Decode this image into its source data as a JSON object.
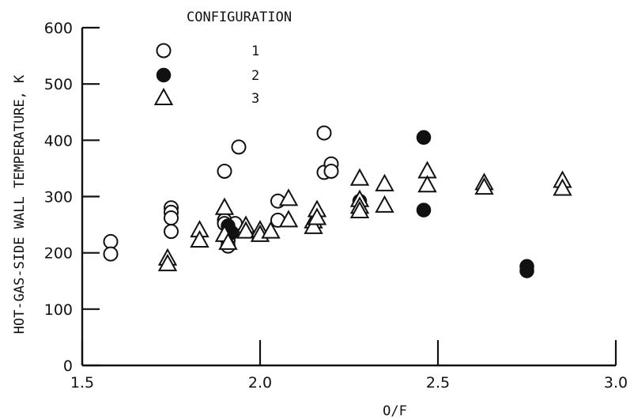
{
  "chart_data": {
    "type": "scatter",
    "title": "",
    "xlabel": "O/F",
    "ylabel": "HOT-GAS-SIDE WALL TEMPERATURE, K",
    "xlim": [
      1.5,
      3.0
    ],
    "ylim": [
      0,
      600
    ],
    "x_ticks": [
      "1.5",
      "2.0",
      "2.5",
      "3.0"
    ],
    "y_ticks": [
      "0",
      "100",
      "200",
      "300",
      "400",
      "500",
      "600"
    ],
    "grid": false,
    "legend": {
      "title": "CONFIGURATION",
      "placement": "top-left",
      "entries": [
        "1",
        "2",
        "3"
      ]
    },
    "series": [
      {
        "name": "1",
        "marker": "open-circle",
        "points": [
          [
            1.58,
            220
          ],
          [
            1.58,
            198
          ],
          [
            1.75,
            280
          ],
          [
            1.75,
            272
          ],
          [
            1.75,
            262
          ],
          [
            1.75,
            238
          ],
          [
            1.9,
            345
          ],
          [
            1.9,
            258
          ],
          [
            1.9,
            252
          ],
          [
            1.91,
            222
          ],
          [
            1.91,
            212
          ],
          [
            1.93,
            252
          ],
          [
            1.94,
            388
          ],
          [
            2.05,
            292
          ],
          [
            2.05,
            258
          ],
          [
            2.18,
            413
          ],
          [
            2.18,
            343
          ],
          [
            2.2,
            358
          ],
          [
            2.2,
            345
          ]
        ]
      },
      {
        "name": "2",
        "marker": "filled-circle",
        "points": [
          [
            1.91,
            248
          ],
          [
            1.92,
            236
          ],
          [
            2.28,
            292
          ],
          [
            2.46,
            405
          ],
          [
            2.46,
            276
          ],
          [
            2.75,
            176
          ],
          [
            2.75,
            168
          ]
        ]
      },
      {
        "name": "3",
        "marker": "open-triangle",
        "points": [
          [
            1.74,
            190
          ],
          [
            1.74,
            180
          ],
          [
            1.83,
            240
          ],
          [
            1.83,
            222
          ],
          [
            1.9,
            280
          ],
          [
            1.9,
            232
          ],
          [
            1.91,
            218
          ],
          [
            1.96,
            248
          ],
          [
            1.96,
            238
          ],
          [
            2.0,
            240
          ],
          [
            2.0,
            232
          ],
          [
            2.03,
            238
          ],
          [
            2.08,
            296
          ],
          [
            2.08,
            258
          ],
          [
            2.15,
            256
          ],
          [
            2.15,
            246
          ],
          [
            2.16,
            276
          ],
          [
            2.16,
            262
          ],
          [
            2.28,
            332
          ],
          [
            2.28,
            294
          ],
          [
            2.28,
            282
          ],
          [
            2.28,
            274
          ],
          [
            2.35,
            322
          ],
          [
            2.35,
            284
          ],
          [
            2.47,
            345
          ],
          [
            2.47,
            320
          ],
          [
            2.63,
            324
          ],
          [
            2.63,
            316
          ],
          [
            2.85,
            328
          ],
          [
            2.85,
            314
          ]
        ]
      }
    ]
  }
}
